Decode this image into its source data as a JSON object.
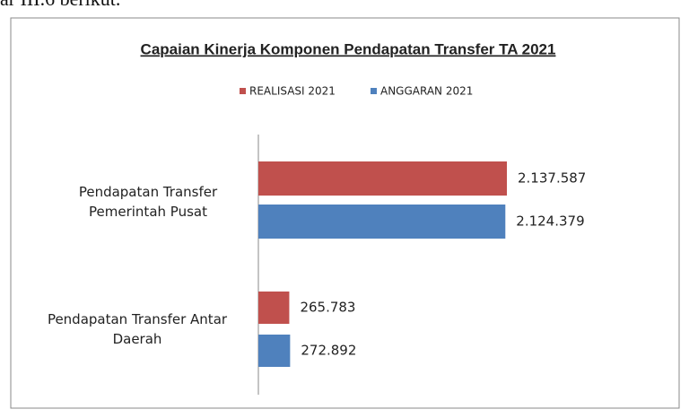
{
  "caption": "ar III.6 berikut.",
  "chart_data": {
    "type": "hbar",
    "title": "Capaian Kinerja Komponen Pendapatan Transfer TA 2021",
    "categories": [
      "Pendapatan Transfer Pemerintah Pusat",
      "Pendapatan Transfer Antar Daerah"
    ],
    "series": [
      {
        "name": "REALISASI 2021",
        "color": "#c0504d",
        "values": [
          2137587,
          265783
        ],
        "value_labels": [
          "2.137.587",
          "265.783"
        ]
      },
      {
        "name": "ANGGARAN 2021",
        "color": "#4f81bd",
        "values": [
          2124379,
          272892
        ],
        "value_labels": [
          "2.124.379",
          "272.892"
        ]
      }
    ],
    "legend": "top"
  }
}
